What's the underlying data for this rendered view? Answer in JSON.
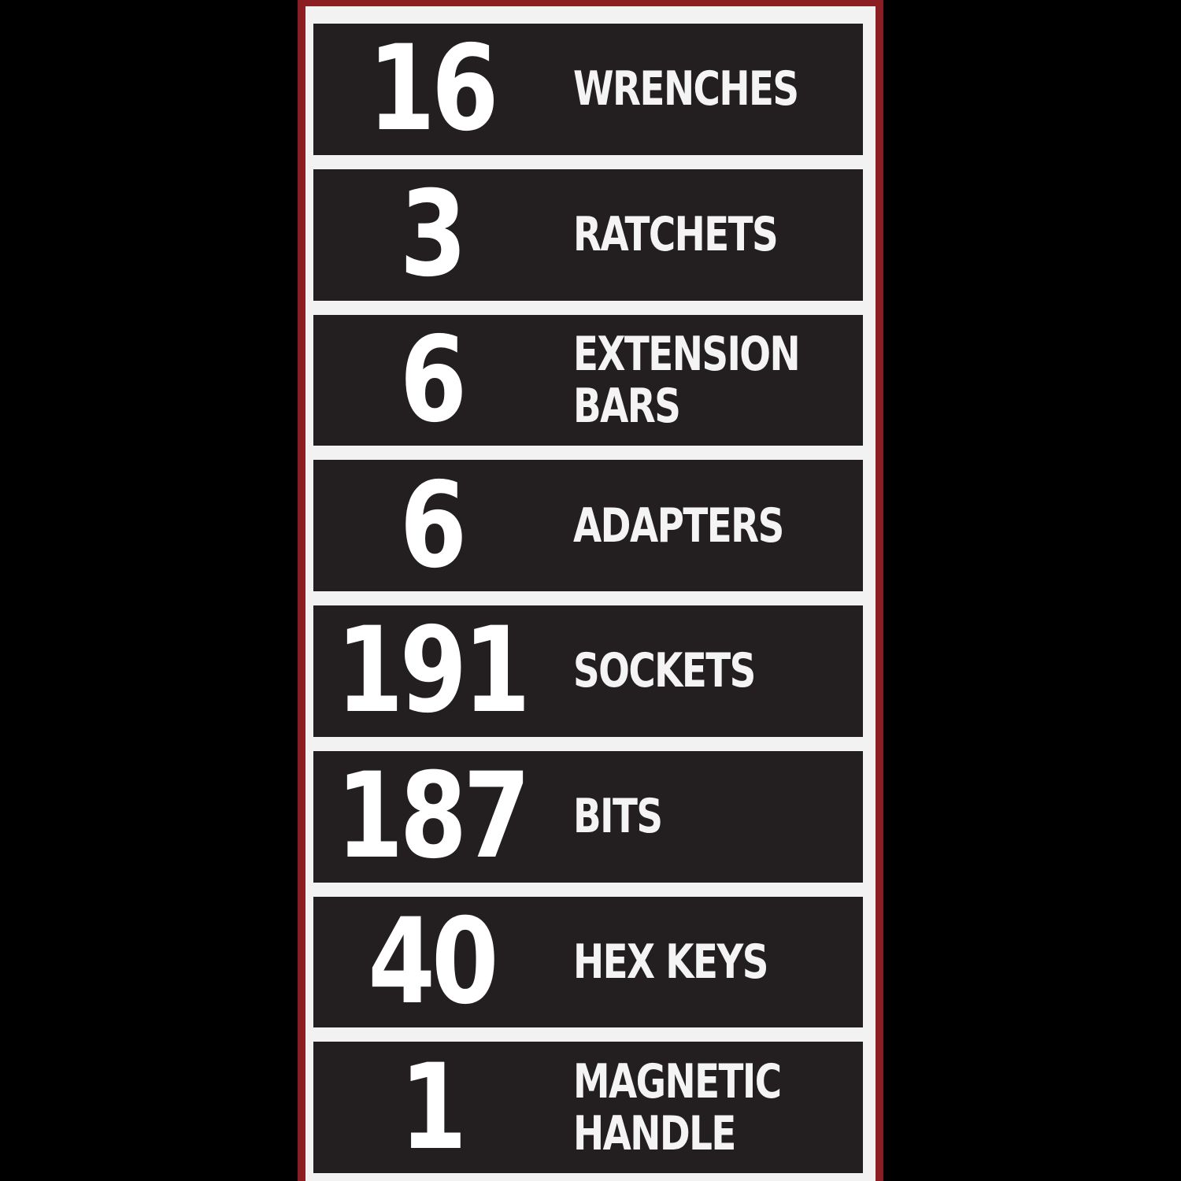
{
  "items": [
    {
      "count": 16,
      "label": [
        "WRENCHES"
      ]
    },
    {
      "count": 3,
      "label": [
        "RATCHETS"
      ]
    },
    {
      "count": 6,
      "label": [
        "EXTENSION",
        "BARS"
      ]
    },
    {
      "count": 6,
      "label": [
        "ADAPTERS"
      ]
    },
    {
      "count": 191,
      "label": [
        "SOCKETS"
      ]
    },
    {
      "count": 187,
      "label": [
        "BITS"
      ]
    },
    {
      "count": 40,
      "label": [
        "HEX KEYS"
      ]
    },
    {
      "count": 1,
      "label": [
        "MAGNETIC",
        "HANDLE"
      ]
    }
  ]
}
